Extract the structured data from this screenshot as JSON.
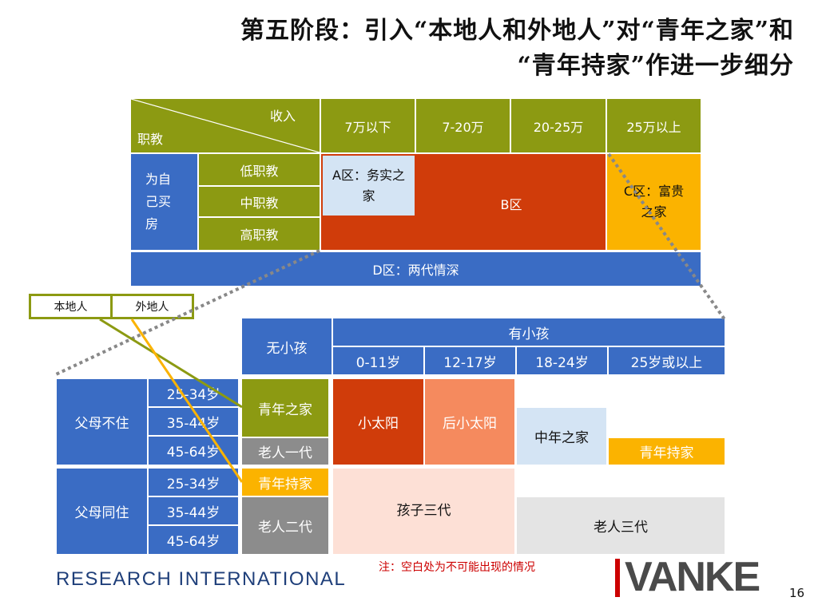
{
  "title": {
    "line1": "第五阶段：引入“本地人和外地人”对“青年之家”和",
    "line2": "“青年持家”作进一步细分"
  },
  "top_table": {
    "corner_top": "收入",
    "corner_bottom": "职教",
    "income_cols": [
      "7万以下",
      "7-20万",
      "20-25万",
      "25万以上"
    ],
    "row_group": "为自己买房",
    "edu_rows": [
      "低职教",
      "中职教",
      "高职教"
    ],
    "zone_a": "A区：务实之家",
    "zone_b": "B区",
    "zone_c": "C区：富贵之家",
    "zone_d": "D区：两代情深"
  },
  "toggle": {
    "local": "本地人",
    "outsider": "外地人"
  },
  "bottom_table": {
    "no_kids": "无小孩",
    "has_kids": "有小孩",
    "kid_ages": [
      "0-11岁",
      "12-17岁",
      "18-24岁",
      "25岁或以上"
    ],
    "parents_not_living": "父母不住",
    "parents_living": "父母同住",
    "age_rows": [
      "25-34岁",
      "35-44岁",
      "45-64岁",
      "25-34岁",
      "35-44岁",
      "45-64岁"
    ],
    "youth_home": "青年之家",
    "elder_gen1": "老人一代",
    "youth_keeper": "青年持家",
    "elder_gen2": "老人二代",
    "little_sun": "小太阳",
    "post_little_sun": "后小太阳",
    "middle_home": "中年之家",
    "youth_keeper_right": "青年持家",
    "three_gen_kids": "孩子三代",
    "three_gen_elder": "老人三代"
  },
  "note": "注：空白处为不可能出现的情况",
  "footer": {
    "company": "RESEARCH INTERNATIONAL",
    "brand": "VANKE",
    "page_number": "16"
  },
  "colors": {
    "olive": "#8c9a12",
    "blue": "#3a6cc4",
    "red": "#d03c0a",
    "orange": "#fbb300"
  }
}
